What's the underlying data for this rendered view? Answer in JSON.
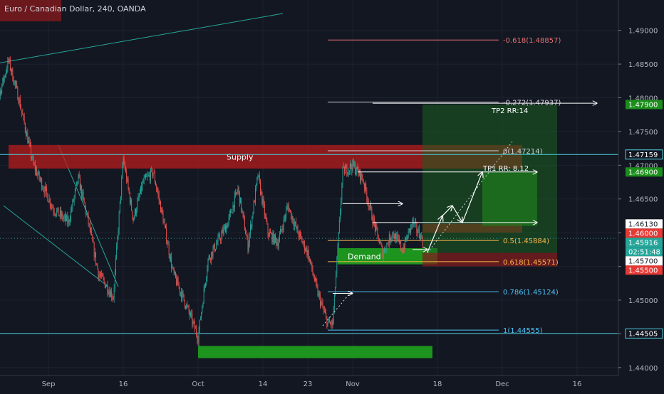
{
  "header": {
    "title": "Euro / Canadian Dollar, 240, OANDA"
  },
  "colors": {
    "background": "#131722",
    "up": "#26a69a",
    "down": "#ef5350",
    "supply": "#b71c1c",
    "demand": "#1ea21e",
    "profit": "#1b5e20",
    "loss": "#7f1d1d",
    "grid": "#1e2230",
    "fib_red": "#e57373",
    "fib_orange": "#ffb74d",
    "fib_teal": "#4fc3f7",
    "fib_white": "#d1d4dc",
    "line_cyan": "#4dd0e1"
  },
  "chart_data": {
    "type": "candlestick",
    "symbol": "Euro / Canadian Dollar",
    "interval": "240",
    "source": "OANDA",
    "y_axis": {
      "range": [
        1.4365,
        1.4945
      ],
      "ticks": [
        "1.49000",
        "1.48500",
        "1.48000",
        "1.47500",
        "1.47000",
        "1.46500",
        "1.46000",
        "1.45500",
        "1.45000",
        "1.44500",
        "1.44000"
      ],
      "tick_values": [
        1.49,
        1.485,
        1.48,
        1.475,
        1.47,
        1.465,
        1.46,
        1.455,
        1.45,
        1.445,
        1.44
      ]
    },
    "x_axis": {
      "ticks": [
        {
          "label": "Sep",
          "date": "2019-09-01"
        },
        {
          "label": "16",
          "date": "2019-09-16"
        },
        {
          "label": "Oct",
          "date": "2019-10-01"
        },
        {
          "label": "14",
          "date": "2019-10-14"
        },
        {
          "label": "23",
          "date": "2019-10-23"
        },
        {
          "label": "Nov",
          "date": "2019-11-01"
        },
        {
          "label": "18",
          "date": "2019-11-18"
        },
        {
          "label": "Dec",
          "date": "2019-12-01"
        },
        {
          "label": "16",
          "date": "2019-12-16"
        }
      ]
    },
    "price_path": [
      {
        "date": "2019-08-20",
        "price": 1.4745
      },
      {
        "date": "2019-08-24",
        "price": 1.4855
      },
      {
        "date": "2019-08-26",
        "price": 1.48
      },
      {
        "date": "2019-08-29",
        "price": 1.47
      },
      {
        "date": "2019-09-02",
        "price": 1.4635
      },
      {
        "date": "2019-09-05",
        "price": 1.4615
      },
      {
        "date": "2019-09-07",
        "price": 1.468
      },
      {
        "date": "2019-09-09",
        "price": 1.4615
      },
      {
        "date": "2019-09-11",
        "price": 1.454
      },
      {
        "date": "2019-09-14",
        "price": 1.4505
      },
      {
        "date": "2019-09-16",
        "price": 1.471
      },
      {
        "date": "2019-09-18",
        "price": 1.462
      },
      {
        "date": "2019-09-20",
        "price": 1.4675
      },
      {
        "date": "2019-09-22",
        "price": 1.469
      },
      {
        "date": "2019-09-24",
        "price": 1.462
      },
      {
        "date": "2019-09-26",
        "price": 1.454
      },
      {
        "date": "2019-09-29",
        "price": 1.4485
      },
      {
        "date": "2019-10-01",
        "price": 1.4445
      },
      {
        "date": "2019-10-03",
        "price": 1.456
      },
      {
        "date": "2019-10-07",
        "price": 1.4615
      },
      {
        "date": "2019-10-09",
        "price": 1.4665
      },
      {
        "date": "2019-10-11",
        "price": 1.458
      },
      {
        "date": "2019-10-13",
        "price": 1.4685
      },
      {
        "date": "2019-10-15",
        "price": 1.46
      },
      {
        "date": "2019-10-17",
        "price": 1.4585
      },
      {
        "date": "2019-10-19",
        "price": 1.464
      },
      {
        "date": "2019-10-21",
        "price": 1.46
      },
      {
        "date": "2019-10-23",
        "price": 1.457
      },
      {
        "date": "2019-10-25",
        "price": 1.451
      },
      {
        "date": "2019-10-27",
        "price": 1.4465
      },
      {
        "date": "2019-10-28",
        "price": 1.4465
      },
      {
        "date": "2019-10-29",
        "price": 1.4575
      },
      {
        "date": "2019-10-30",
        "price": 1.469
      },
      {
        "date": "2019-11-01",
        "price": 1.47
      },
      {
        "date": "2019-11-03",
        "price": 1.468
      },
      {
        "date": "2019-11-05",
        "price": 1.462
      },
      {
        "date": "2019-11-07",
        "price": 1.457
      },
      {
        "date": "2019-11-09",
        "price": 1.46
      },
      {
        "date": "2019-11-11",
        "price": 1.4575
      },
      {
        "date": "2019-11-13",
        "price": 1.4615
      },
      {
        "date": "2019-11-15",
        "price": 1.459
      }
    ],
    "last_candle": {
      "date": "2019-11-15",
      "open": 1.4596,
      "high": 1.4605,
      "low": 1.458,
      "close": 1.45916
    },
    "zones": [
      {
        "type": "supply",
        "label": "Supply",
        "from_date": "2019-08-24",
        "to_date": "2019-12-05",
        "top": 1.473,
        "bottom": 1.4695
      },
      {
        "type": "demand",
        "label": "Demand",
        "from_date": "2019-10-29",
        "to_date": "2019-11-18",
        "top": 1.4577,
        "bottom": 1.4553
      },
      {
        "type": "demand",
        "label": "",
        "from_date": "2019-10-01",
        "to_date": "2019-11-17",
        "top": 1.4432,
        "bottom": 1.4414
      },
      {
        "type": "supply",
        "label": "",
        "from_date": "2019-11-15",
        "to_date": "2019-12-05",
        "top": 1.4613,
        "bottom": 1.46
      }
    ],
    "position": {
      "type": "long",
      "from_date": "2019-11-15",
      "to_date": "2019-12-12",
      "entry": 1.457,
      "stop": 1.455,
      "targets": [
        {
          "label": "TP1 RR: 8.12",
          "price": 1.469
        },
        {
          "label": "TP2 RR:14",
          "price": 1.479
        }
      ]
    },
    "fibonacci": [
      {
        "label": "-0.618(1.48857)",
        "price": 1.48857,
        "color": "fib_red"
      },
      {
        "label": "-0.272(1.47937)",
        "price": 1.47937,
        "color": "fib_white"
      },
      {
        "label": "0(1.47214)",
        "price": 1.47214,
        "color": "fib_white"
      },
      {
        "label": "0.5(1.45884)",
        "price": 1.45884,
        "color": "fib_orange"
      },
      {
        "label": "0.618(1.45571)",
        "price": 1.45571,
        "color": "fib_orange"
      },
      {
        "label": "0.786(1.45124)",
        "price": 1.45124,
        "color": "fib_teal"
      },
      {
        "label": "1(1.44555)",
        "price": 1.44555,
        "color": "fib_teal"
      }
    ],
    "horizontal_lines": [
      {
        "price": 1.44505,
        "color": "line_cyan"
      },
      {
        "price": 1.47159,
        "color": "line_cyan"
      }
    ],
    "price_labels": [
      {
        "text": "1.47900",
        "price": 1.479,
        "style": "green"
      },
      {
        "text": "1.47159",
        "price": 1.47159,
        "style": "dark"
      },
      {
        "text": "1.46900",
        "price": 1.469,
        "style": "green"
      },
      {
        "text": "1.46130",
        "price": 1.4613,
        "style": "white"
      },
      {
        "text": "1.46000",
        "price": 1.46,
        "style": "red"
      },
      {
        "text": "1.45916",
        "price": 1.45916,
        "style": "teal"
      },
      {
        "text": "02:51:48",
        "price": 1.458,
        "style": "teal"
      },
      {
        "text": "1.45700",
        "price": 1.457,
        "style": "white"
      },
      {
        "text": "1.45500",
        "price": 1.455,
        "style": "red"
      },
      {
        "text": "1.44505",
        "price": 1.44505,
        "style": "dark"
      }
    ],
    "trendlines": [
      {
        "from": {
          "date": "2019-08-17",
          "price": 1.4845
        },
        "to": {
          "date": "2019-10-18",
          "price": 1.4925
        }
      },
      {
        "from": {
          "date": "2019-09-03",
          "price": 1.473
        },
        "to": {
          "date": "2019-09-15",
          "price": 1.452
        }
      },
      {
        "from": {
          "date": "2019-08-23",
          "price": 1.464
        },
        "to": {
          "date": "2019-09-13",
          "price": 1.452
        }
      }
    ],
    "projection_path": [
      {
        "date": "2019-11-16",
        "price": 1.4571
      },
      {
        "date": "2019-11-19",
        "price": 1.4625
      },
      {
        "date": "2019-11-21",
        "price": 1.464
      },
      {
        "date": "2019-11-23",
        "price": 1.4615
      },
      {
        "date": "2019-11-27",
        "price": 1.469
      }
    ],
    "arrows": [
      {
        "from": {
          "date": "2019-10-30",
          "price": 1.4643
        },
        "to": {
          "date": "2019-11-11",
          "price": 1.4643
        }
      },
      {
        "from": {
          "date": "2019-11-05",
          "price": 1.4615
        },
        "to": {
          "date": "2019-12-08",
          "price": 1.4615
        }
      },
      {
        "from": {
          "date": "2019-11-02",
          "price": 1.469
        },
        "to": {
          "date": "2019-12-08",
          "price": 1.469
        }
      },
      {
        "from": {
          "date": "2019-11-05",
          "price": 1.4792
        },
        "to": {
          "date": "2019-12-20",
          "price": 1.4792
        }
      },
      {
        "from": {
          "date": "2019-10-28",
          "price": 1.451
        },
        "to": {
          "date": "2019-11-01",
          "price": 1.451
        }
      },
      {
        "from": {
          "date": "2019-11-13",
          "price": 1.4575
        },
        "to": {
          "date": "2019-11-16",
          "price": 1.4575
        }
      }
    ],
    "dotted_lines": [
      {
        "from": {
          "date": "2019-10-26",
          "price": 1.4462
        },
        "to": {
          "date": "2019-11-01",
          "price": 1.4515
        }
      },
      {
        "from": {
          "date": "2019-11-16",
          "price": 1.457
        },
        "to": {
          "date": "2019-12-03",
          "price": 1.4735
        }
      }
    ]
  }
}
